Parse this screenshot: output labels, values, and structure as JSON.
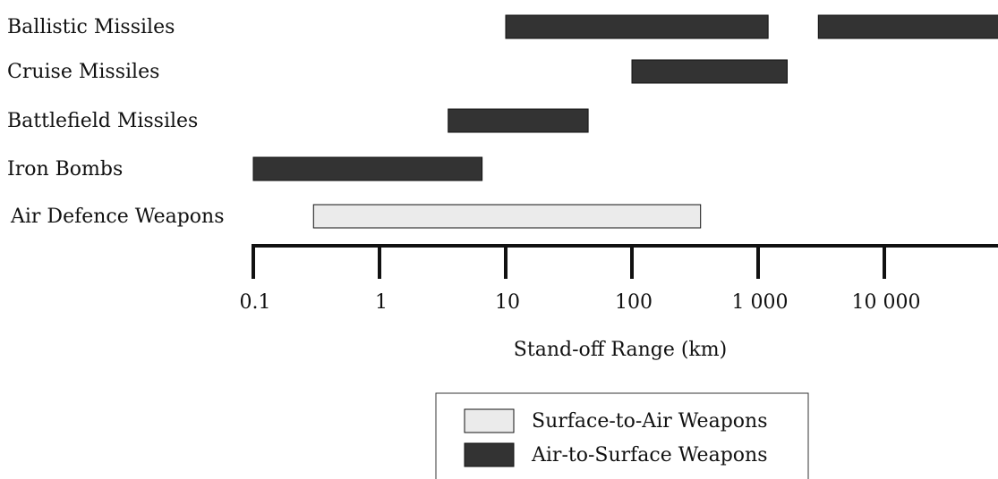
{
  "chart_data": {
    "type": "bar",
    "orientation": "horizontal-range",
    "x_scale": "log",
    "xlim": [
      0.1,
      100000
    ],
    "xlabel": "Stand-off Range (km)",
    "x_ticks": [
      {
        "value": 0.1,
        "label": "0.1"
      },
      {
        "value": 1,
        "label": "1"
      },
      {
        "value": 10,
        "label": "10"
      },
      {
        "value": 100,
        "label": "100"
      },
      {
        "value": 1000,
        "label": "1 000"
      },
      {
        "value": 10000,
        "label": "10 000"
      }
    ],
    "categories": [
      "Ballistic Missiles",
      "Cruise Missiles",
      "Battlefield Missiles",
      "Iron Bombs",
      "Air Defence Weapons"
    ],
    "series": [
      {
        "name": "Surface-to-Air Weapons",
        "color": "#ebebeb",
        "ranges": [
          {
            "category": "Air Defence Weapons",
            "start": 0.3,
            "end": 350
          }
        ]
      },
      {
        "name": "Air-to-Surface Weapons",
        "color": "#333333",
        "ranges": [
          {
            "category": "Ballistic Missiles",
            "start": 10,
            "end": 1200
          },
          {
            "category": "Ballistic Missiles",
            "start": 3000,
            "end": 100000
          },
          {
            "category": "Cruise Missiles",
            "start": 100,
            "end": 1700
          },
          {
            "category": "Battlefield Missiles",
            "start": 3.5,
            "end": 45
          },
          {
            "category": "Iron Bombs",
            "start": 0.1,
            "end": 6.5
          }
        ]
      }
    ],
    "legend": {
      "position": "bottom-center",
      "entries": [
        "Surface-to-Air Weapons",
        "Air-to-Surface Weapons"
      ]
    },
    "grid": false
  }
}
